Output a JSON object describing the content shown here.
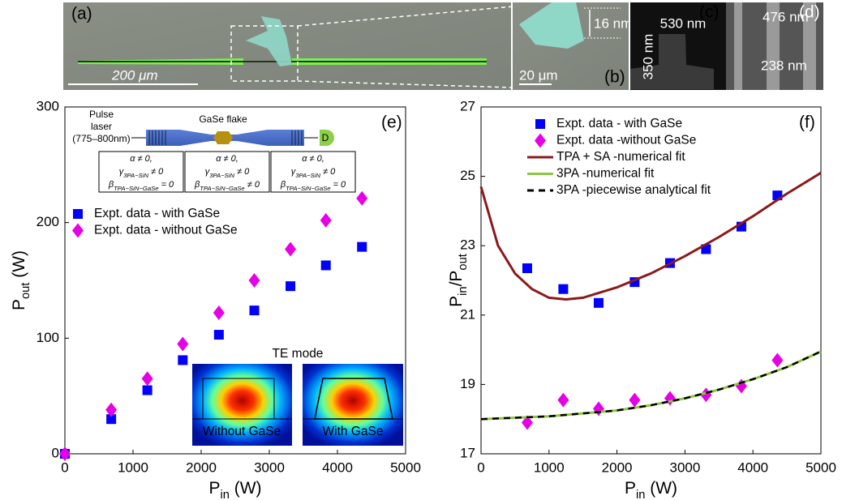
{
  "panels": {
    "a": "(a)",
    "b": "(b)",
    "c": "(c)",
    "d": "(d)",
    "scale_a": "200 μm",
    "thickness": "16 nm",
    "scale_b": "20 μm",
    "width_c": "530 nm",
    "height_c": "350 nm",
    "width_d": "476 nm",
    "gap_d": "238 nm"
  },
  "schematic": {
    "source": [
      "Pulse",
      "laser",
      "(775–800nm)"
    ],
    "flake": "GaSe flake",
    "detector": "D",
    "boxes": [
      [
        [
          {
            "text": "α ≠ 0,"
          }
        ],
        [
          {
            "text": "γ"
          },
          {
            "text": "3PA−SiN",
            "sub": true
          },
          {
            "text": " ≠ 0"
          }
        ],
        [
          {
            "text": "β"
          },
          {
            "text": "TPA−SiN−GaSe",
            "sub": true
          },
          {
            "text": " = 0"
          }
        ]
      ],
      [
        [
          {
            "text": "α ≠ 0,"
          }
        ],
        [
          {
            "text": "γ"
          },
          {
            "text": "3PA−SiN",
            "sub": true
          },
          {
            "text": " ≠ 0"
          }
        ],
        [
          {
            "text": "β"
          },
          {
            "text": "TPA−SiN−GaSe",
            "sub": true
          },
          {
            "text": " ≠ 0"
          }
        ]
      ],
      [
        [
          {
            "text": "α ≠ 0,"
          }
        ],
        [
          {
            "text": "γ"
          },
          {
            "text": "3PA−SiN",
            "sub": true
          },
          {
            "text": " ≠ 0"
          }
        ],
        [
          {
            "text": "β"
          },
          {
            "text": "TPA−SiN−GaSe",
            "sub": true
          },
          {
            "text": " = 0"
          }
        ]
      ]
    ]
  },
  "modes": {
    "title": "TE mode",
    "left": "Without GaSe",
    "right": "With GaSe"
  },
  "chart_data": [
    {
      "type": "scatter",
      "label": "(e)",
      "x_label": [
        {
          "text": "P"
        },
        {
          "text": "in",
          "sub": true
        },
        {
          "text": " (W)"
        }
      ],
      "y_label": [
        {
          "text": "P"
        },
        {
          "text": "out",
          "sub": true
        },
        {
          "text": " (W)"
        }
      ],
      "xlim": [
        0,
        5000
      ],
      "ylim": [
        0,
        300
      ],
      "xticks": [
        0,
        1000,
        2000,
        3000,
        4000,
        5000
      ],
      "yticks": [
        0,
        100,
        200,
        300
      ],
      "series": [
        {
          "name": "Expt. data - with GaSe",
          "color": "#0000ff",
          "marker": "square",
          "x": [
            0,
            680,
            1210,
            1730,
            2260,
            2780,
            3310,
            3830,
            4360
          ],
          "values": [
            0,
            30,
            55,
            81,
            103,
            124,
            145,
            163,
            179
          ]
        },
        {
          "name": "Expt. data - without GaSe",
          "color": "#e600e6",
          "marker": "diamond",
          "x": [
            0,
            680,
            1210,
            1730,
            2260,
            2780,
            3310,
            3830,
            4360
          ],
          "values": [
            0,
            38,
            65,
            95,
            122,
            150,
            177,
            202,
            221
          ]
        }
      ]
    },
    {
      "type": "scatter",
      "label": "(f)",
      "x_label": [
        {
          "text": "P"
        },
        {
          "text": "in",
          "sub": true
        },
        {
          "text": " (W)"
        }
      ],
      "y_label": [
        {
          "text": "P"
        },
        {
          "text": "in",
          "sub": true
        },
        {
          "text": "/P"
        },
        {
          "text": "out",
          "sub": true
        }
      ],
      "xlim": [
        0,
        5000
      ],
      "ylim": [
        17,
        27
      ],
      "xticks": [
        0,
        1000,
        2000,
        3000,
        4000,
        5000
      ],
      "yticks": [
        17,
        19,
        21,
        23,
        25,
        27
      ],
      "series": [
        {
          "name": "Expt. data - with GaSe",
          "color": "#0000ff",
          "marker": "square",
          "x": [
            680,
            1210,
            1730,
            2260,
            2780,
            3310,
            3830,
            4360
          ],
          "values": [
            22.35,
            21.75,
            21.35,
            21.95,
            22.5,
            22.9,
            23.55,
            24.45
          ]
        },
        {
          "name": "Expt. data -without GaSe",
          "color": "#e600e6",
          "marker": "diamond",
          "x": [
            680,
            1210,
            1730,
            2260,
            2780,
            3310,
            3830,
            4360
          ],
          "values": [
            17.9,
            18.55,
            18.3,
            18.55,
            18.6,
            18.7,
            18.95,
            19.7
          ]
        },
        {
          "name": "TPA + SA -numerical fit",
          "color": "#8b1a1a",
          "marker": "line",
          "x": [
            0,
            250,
            500,
            750,
            1000,
            1250,
            1500,
            2000,
            2500,
            3000,
            3500,
            4000,
            4500,
            5000
          ],
          "values": [
            24.7,
            23.0,
            22.2,
            21.75,
            21.5,
            21.45,
            21.5,
            21.8,
            22.2,
            22.7,
            23.25,
            23.85,
            24.5,
            25.1
          ]
        },
        {
          "name": "3PA -numerical fit",
          "color": "#8cc63f",
          "marker": "line",
          "x": [
            0,
            1000,
            2000,
            2500,
            3000,
            3500,
            4000,
            4500,
            5000
          ],
          "values": [
            18.0,
            18.08,
            18.25,
            18.4,
            18.6,
            18.85,
            19.15,
            19.5,
            19.95
          ]
        },
        {
          "name": "3PA -piecewise analytical fit",
          "color": "#000000",
          "marker": "dashed",
          "x": [
            0,
            1000,
            2000,
            2500,
            3000,
            3500,
            4000,
            4500,
            5000
          ],
          "values": [
            18.0,
            18.08,
            18.25,
            18.4,
            18.6,
            18.85,
            19.15,
            19.5,
            19.95
          ]
        }
      ]
    }
  ]
}
